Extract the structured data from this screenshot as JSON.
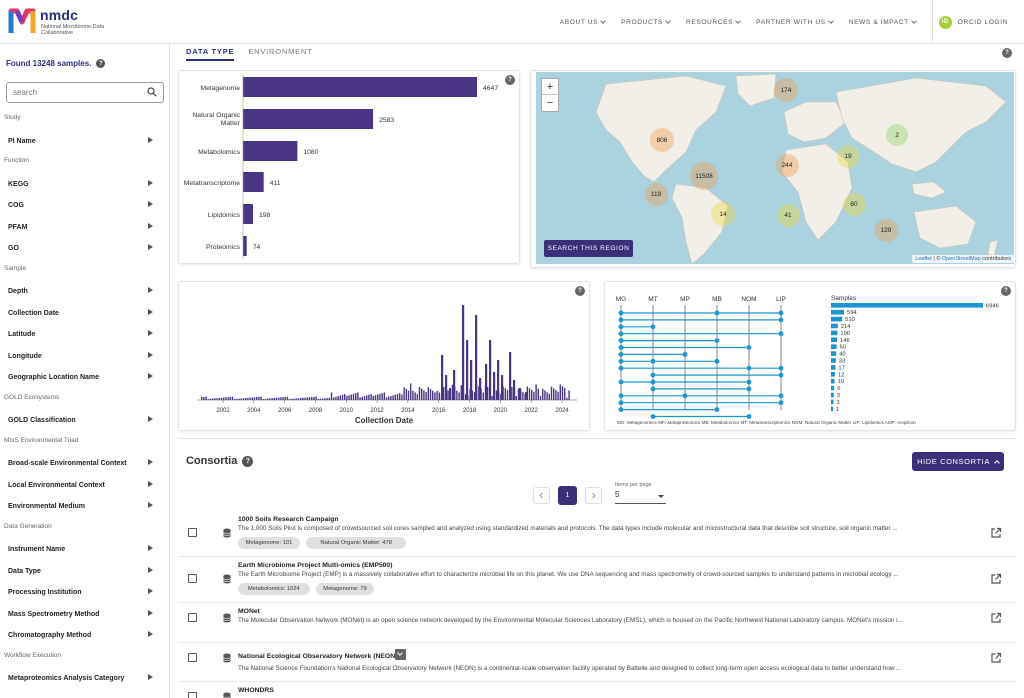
{
  "header": {
    "logo_word": "nmdc",
    "logo_sub": "National Microbiome Data Collaborative",
    "nav": [
      "ABOUT US",
      "PRODUCTS",
      "RESOURCES",
      "PARTNER WITH US",
      "NEWS & IMPACT"
    ],
    "orcid_icon": "iD",
    "orcid_label": "ORCID LOGIN"
  },
  "sidebar": {
    "found": "Found 13248 samples.",
    "search_placeholder": "search",
    "sections": [
      {
        "label": "Study",
        "items": [
          "PI Name"
        ]
      },
      {
        "label": "Function",
        "items": [
          "KEGG",
          "COG",
          "PFAM",
          "GO"
        ]
      },
      {
        "label": "Sample",
        "items": [
          "Depth",
          "Collection Date",
          "Latitude",
          "Longitude",
          "Geographic Location Name"
        ]
      },
      {
        "label": "GOLD Ecosystems",
        "items": [
          "GOLD Classification"
        ]
      },
      {
        "label": "MIxS Environmental Triad",
        "items": [
          "Broad-scale Environmental Context",
          "Local Environmental Context",
          "Environmental Medium"
        ]
      },
      {
        "label": "Data Generation",
        "items": [
          "Instrument Name",
          "Data Type",
          "Processing Institution",
          "Mass Spectrometry Method",
          "Chromatography Method"
        ]
      },
      {
        "label": "Workflow Execution",
        "items": [
          "Metaproteomics Analysis Category"
        ]
      }
    ]
  },
  "tabs": [
    "DATA TYPE",
    "ENVIRONMENT"
  ],
  "help_glyph": "?",
  "bar_chart": {
    "categories": [
      "Metagenome",
      "Natural Organic Matter",
      "Metabolomics",
      "Metatranscriptome",
      "Lipidomics",
      "Proteomics"
    ],
    "values": [
      4647,
      2583,
      1080,
      411,
      198,
      74
    ]
  },
  "map": {
    "zoom_in": "+",
    "zoom_out": "−",
    "search_region": "SEARCH THIS REGION",
    "attribution_a": "Leaflet",
    "attribution_sep": " | © ",
    "attribution_b": "OpenStreetMap",
    "attribution_c": " contributors",
    "clusters": [
      {
        "label": "174",
        "color": "#f29b4a"
      },
      {
        "label": "806",
        "color": "#f29b4a"
      },
      {
        "label": "11508",
        "color": "#f29b4a"
      },
      {
        "label": "119",
        "color": "#f29b4a"
      },
      {
        "label": "14",
        "color": "#f1d63a"
      },
      {
        "label": "244",
        "color": "#f29b4a"
      },
      {
        "label": "41",
        "color": "#f1d63a"
      },
      {
        "label": "19",
        "color": "#f1d63a"
      },
      {
        "label": "2",
        "color": "#8fd35f"
      },
      {
        "label": "60",
        "color": "#f1d63a"
      },
      {
        "label": "129",
        "color": "#f29b4a"
      }
    ]
  },
  "timeline": {
    "xlabel": "Collection Date",
    "ticks": [
      "2002",
      "2004",
      "2006",
      "2008",
      "2010",
      "2012",
      "2014",
      "2016",
      "2018",
      "2020",
      "2022",
      "2024"
    ]
  },
  "upset": {
    "columns": [
      "MG",
      "MT",
      "MP",
      "MB",
      "NOM",
      "LIP"
    ],
    "samples_label": "Samples",
    "counts": [
      6946,
      594,
      510,
      214,
      190,
      146,
      50,
      40,
      33,
      17,
      12,
      10,
      6,
      3,
      3,
      1
    ],
    "legend": "MG: Metagenomics   MP: Metaproteomics   MB: Metabolomics   MT: Metatranscriptomics   NOM: Natural Organic Matter   LIP: Lipidomics   AMP: Amplicon"
  },
  "chart_data": [
    {
      "type": "bar",
      "categories": [
        "Metagenome",
        "Natural Organic Matter",
        "Metabolomics",
        "Metatranscriptome",
        "Lipidomics",
        "Proteomics"
      ],
      "values": [
        4647,
        2583,
        1080,
        411,
        198,
        74
      ]
    },
    {
      "type": "bar",
      "xlabel": "Collection Date",
      "x": [
        "2002",
        "2004",
        "2006",
        "2008",
        "2010",
        "2012",
        "2014",
        "2016",
        "2018",
        "2020",
        "2022",
        "2024"
      ]
    },
    {
      "type": "bar",
      "title": "Samples",
      "values": [
        6946,
        594,
        510,
        214,
        190,
        146,
        50,
        40,
        33,
        17,
        12,
        10,
        6,
        3,
        3,
        1
      ]
    }
  ],
  "consortia": {
    "title": "Consortia",
    "hide_label": "HIDE CONSORTIA",
    "page": "1",
    "items_per_page_label": "Items per page",
    "items_per_page": "5",
    "rows": [
      {
        "name": "1000 Soils Research Campaign",
        "desc": "The 1,000 Soils Pilot is composed of crowdsourced soil cores sampled and analyzed using standardized materials and protocols. The data types include molecular and microstructural data that describe soil structure, soil organic matter ...",
        "chips": [
          "Metagenome: 101",
          "Natural Organic Matter: 478"
        ]
      },
      {
        "name": "Earth Microbiome Project Multi-omics (EMP500)",
        "desc": "The Earth Microbiome Project (EMP) is a massively collaborative effort to characterize microbial life on this planet. We use DNA sequencing and mass spectrometry of crowd-sourced samples to understand patterns in microbial ecology ...",
        "chips": [
          "Metabolomics: 1024",
          "Metagenome: 79"
        ]
      },
      {
        "name": "MONet",
        "desc": "The Molecular Observation Network (MONet) is an open science network developed by the Environmental Molecular Sciences Laboratory (EMSL), which is housed on the Pacific Northwest National Laboratory campus. MONet's mission i...",
        "chips": []
      },
      {
        "name": "National Ecological Observatory Network (NEON)",
        "desc": "The National Science Foundation's National Ecological Observatory Network (NEON) is a continental-scale observation facility operated by Battelle and designed to collect long-term open access ecological data to better understand how ...",
        "chips": []
      },
      {
        "name": "WHONDRS",
        "desc": "",
        "chips": []
      }
    ]
  }
}
